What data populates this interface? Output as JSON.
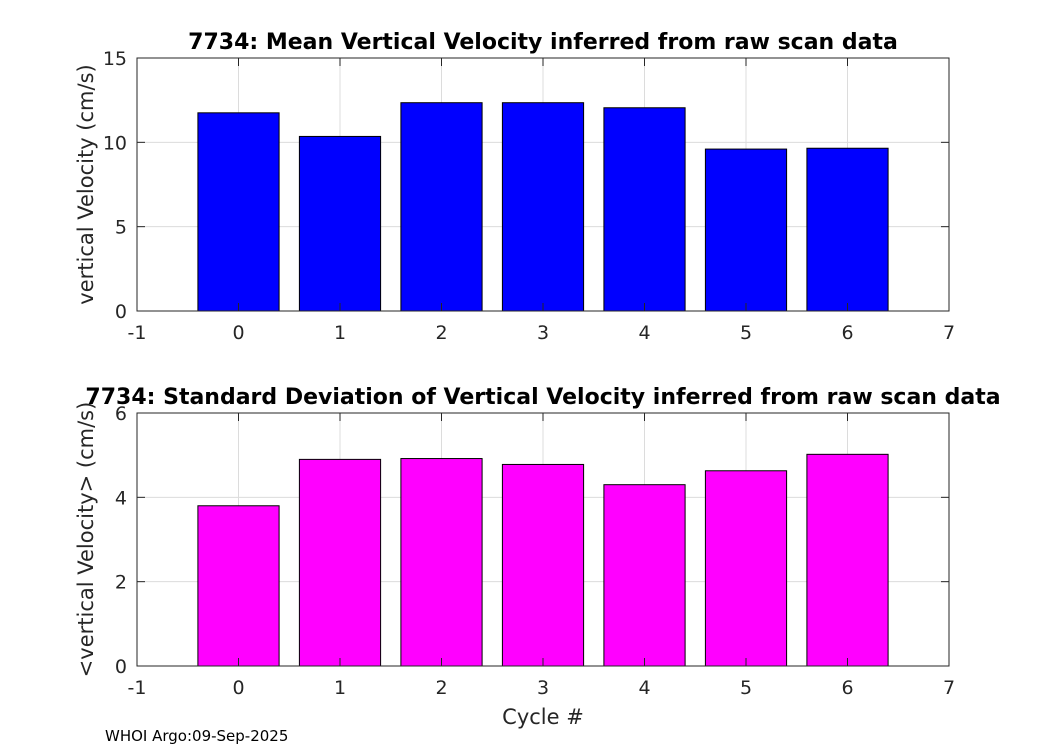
{
  "chart_data": [
    {
      "type": "bar",
      "title": "7734: Mean Vertical Velocity inferred from raw scan data",
      "xlabel": "",
      "ylabel": "vertical Velocity (cm/s)",
      "categories": [
        0,
        1,
        2,
        3,
        4,
        5,
        6
      ],
      "values": [
        11.75,
        10.35,
        12.35,
        12.35,
        12.05,
        9.6,
        9.65
      ],
      "xlim": [
        -1,
        7
      ],
      "ylim": [
        0,
        15
      ],
      "xticks": [
        "-1",
        "0",
        "1",
        "2",
        "3",
        "4",
        "5",
        "6",
        "7"
      ],
      "yticks": [
        "0",
        "5",
        "10",
        "15"
      ],
      "grid": true,
      "color": "#0000ff"
    },
    {
      "type": "bar",
      "title": "7734: Standard Deviation of Vertical Velocity inferred from raw scan data",
      "xlabel": "Cycle #",
      "ylabel": "<vertical Velocity> (cm/s)",
      "categories": [
        0,
        1,
        2,
        3,
        4,
        5,
        6
      ],
      "values": [
        3.8,
        4.9,
        4.92,
        4.78,
        4.3,
        4.63,
        5.02
      ],
      "xlim": [
        -1,
        7
      ],
      "ylim": [
        0,
        6
      ],
      "xticks": [
        "-1",
        "0",
        "1",
        "2",
        "3",
        "4",
        "5",
        "6",
        "7"
      ],
      "yticks": [
        "0",
        "2",
        "4",
        "6"
      ],
      "grid": true,
      "color": "#ff00ff"
    }
  ],
  "footer": {
    "text": "WHOI Argo:09-Sep-2025"
  }
}
